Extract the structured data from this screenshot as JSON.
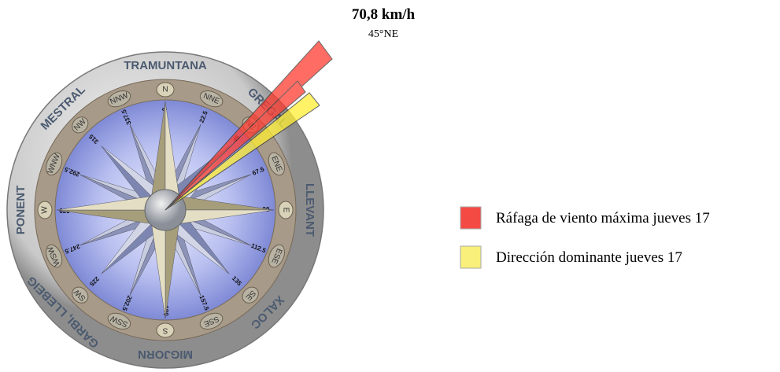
{
  "annotation": {
    "value": "70,8 km/h",
    "direction": "45°NE"
  },
  "wind_names": [
    "TRAMUNTANA",
    "GREGAL",
    "LLEVANT",
    "XALOC",
    "MIGJORN",
    "GARBI, LLEBEIG",
    "PONENT",
    "MESTRAL"
  ],
  "points": [
    "N",
    "NNE",
    "NE",
    "ENE",
    "E",
    "ESE",
    "SE",
    "SSE",
    "S",
    "SSW",
    "SW",
    "WSW",
    "W",
    "WNW",
    "NW",
    "NNW"
  ],
  "degrees": [
    0,
    22.5,
    45,
    67.5,
    90,
    112.5,
    135,
    157.5,
    180,
    202.5,
    225,
    247.5,
    270,
    292.5,
    315,
    337.5
  ],
  "legend": [
    "Ráfaga de viento máxima jueves 17",
    "Dirección dominante jueves 17"
  ]
}
